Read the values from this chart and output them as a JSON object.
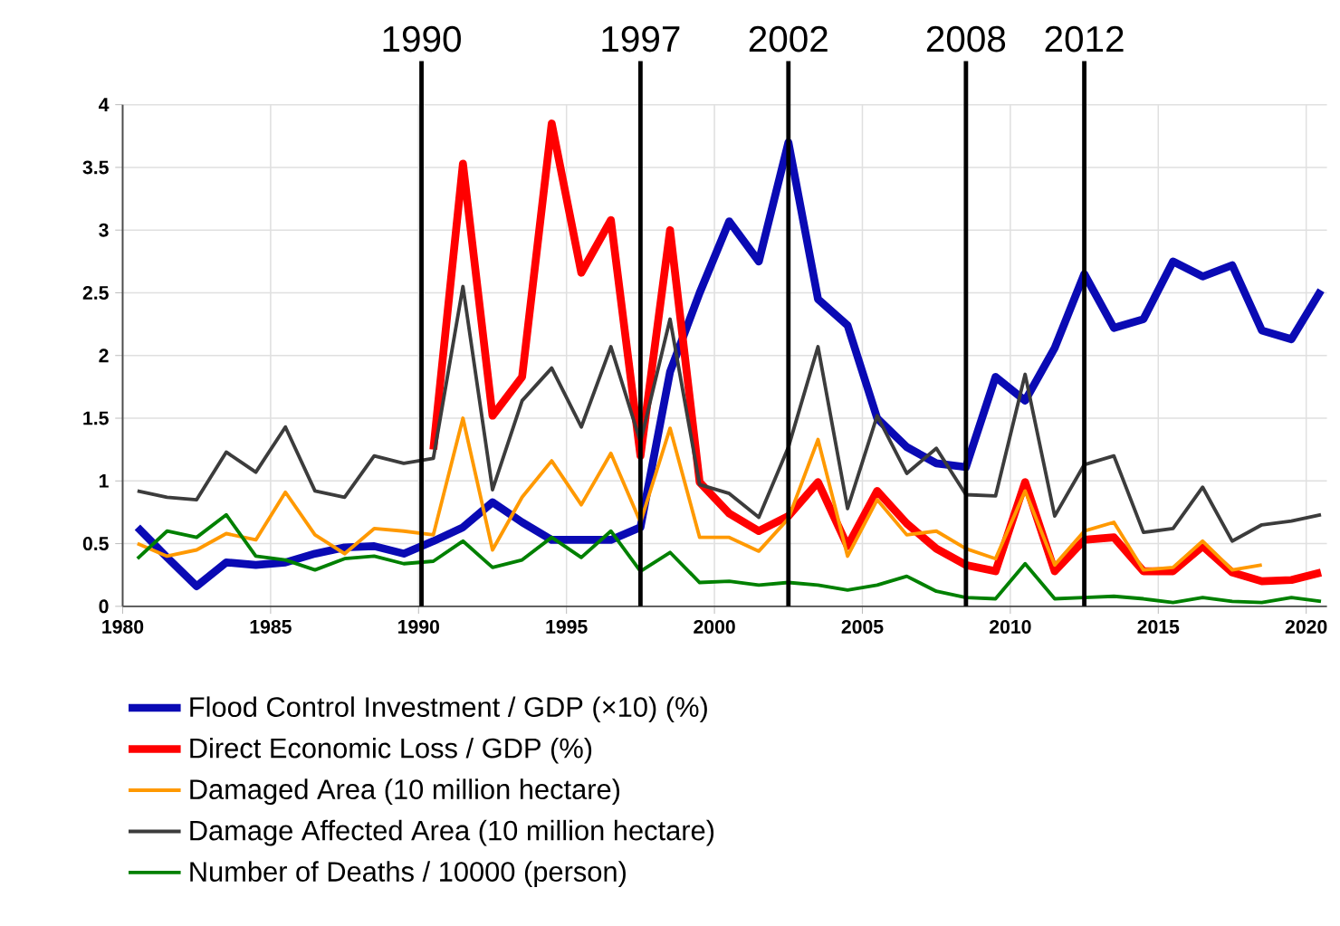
{
  "chart_data": {
    "type": "line",
    "x": [
      1980.5,
      1981.5,
      1982.5,
      1983.5,
      1984.5,
      1985.5,
      1986.5,
      1987.5,
      1988.5,
      1989.5,
      1990.5,
      1991.5,
      1992.5,
      1993.5,
      1994.5,
      1995.5,
      1996.5,
      1997.5,
      1998.5,
      1999.5,
      2000.5,
      2001.5,
      2002.5,
      2003.5,
      2004.5,
      2005.5,
      2006.5,
      2007.5,
      2008.5,
      2009.5,
      2010.5,
      2011.5,
      2012.5,
      2013.5,
      2014.5,
      2015.5,
      2016.5,
      2017.5,
      2018.5,
      2019.5,
      2020.5
    ],
    "series": [
      {
        "name": "Flood Control Investment / GDP  (×10)  (%)",
        "color": "#0a0ab4",
        "values": [
          0.63,
          0.39,
          0.16,
          0.35,
          0.33,
          0.35,
          0.42,
          0.47,
          0.48,
          0.42,
          0.52,
          0.63,
          0.83,
          0.67,
          0.53,
          0.53,
          0.53,
          0.63,
          1.87,
          2.5,
          3.07,
          2.75,
          3.7,
          2.45,
          2.24,
          1.5,
          1.27,
          1.14,
          1.11,
          1.83,
          1.64,
          2.06,
          2.65,
          2.22,
          2.29,
          2.75,
          2.63,
          2.72,
          2.2,
          2.13,
          2.52
        ]
      },
      {
        "name": "Direct Economic Loss / GDP    (%)",
        "color": "#ff0000",
        "values": [
          null,
          null,
          null,
          null,
          null,
          null,
          null,
          null,
          null,
          null,
          1.25,
          3.53,
          1.52,
          1.83,
          3.85,
          2.66,
          3.08,
          1.2,
          3.0,
          0.99,
          0.74,
          0.6,
          0.72,
          0.99,
          0.48,
          0.92,
          0.66,
          0.46,
          0.33,
          0.28,
          0.99,
          0.28,
          0.53,
          0.55,
          0.28,
          0.28,
          0.48,
          0.27,
          0.2,
          0.21,
          0.27
        ]
      },
      {
        "name": "Damaged Area  (10 million hectare)",
        "color": "#ff9900",
        "values": [
          0.5,
          0.4,
          0.45,
          0.58,
          0.53,
          0.91,
          0.57,
          0.42,
          0.62,
          0.6,
          0.57,
          1.5,
          0.45,
          0.87,
          1.16,
          0.81,
          1.22,
          0.67,
          1.42,
          0.55,
          0.55,
          0.44,
          0.7,
          1.33,
          0.4,
          0.85,
          0.57,
          0.6,
          0.46,
          0.38,
          0.92,
          0.33,
          0.6,
          0.67,
          0.29,
          0.31,
          0.52,
          0.29,
          0.33,
          null,
          null
        ]
      },
      {
        "name": "Damage Affected Area  (10 million hectare)",
        "color": "#3c3c3c",
        "values": [
          0.92,
          0.87,
          0.85,
          1.23,
          1.07,
          1.43,
          0.92,
          0.87,
          1.2,
          1.14,
          1.18,
          2.55,
          0.93,
          1.64,
          1.9,
          1.43,
          2.07,
          1.31,
          2.29,
          0.97,
          0.9,
          0.71,
          1.27,
          2.07,
          0.78,
          1.52,
          1.06,
          1.26,
          0.89,
          0.88,
          1.85,
          0.72,
          1.13,
          1.2,
          0.59,
          0.62,
          0.95,
          0.52,
          0.65,
          0.68,
          0.73
        ]
      },
      {
        "name": "Number of Deaths / 10000  (person)",
        "color": "#008000",
        "values": [
          0.38,
          0.6,
          0.55,
          0.73,
          0.4,
          0.37,
          0.29,
          0.38,
          0.4,
          0.34,
          0.36,
          0.52,
          0.31,
          0.37,
          0.55,
          0.39,
          0.6,
          0.28,
          0.43,
          0.19,
          0.2,
          0.17,
          0.19,
          0.17,
          0.13,
          0.17,
          0.24,
          0.12,
          0.07,
          0.06,
          0.34,
          0.06,
          0.07,
          0.08,
          0.06,
          0.03,
          0.07,
          0.04,
          0.03,
          0.07,
          0.04
        ]
      }
    ],
    "xlim": [
      1980,
      2020.7
    ],
    "ylim": [
      0,
      4
    ],
    "xticks": [
      1980,
      1985,
      1990,
      1995,
      2000,
      2005,
      2010,
      2015,
      2020
    ],
    "yticks": [
      0,
      0.5,
      1,
      1.5,
      2,
      2.5,
      3,
      3.5,
      4
    ],
    "grid": true,
    "legend": "bottom",
    "ref_lines": [
      {
        "axis": "x",
        "value": 1990.1,
        "label": "1990",
        "color": "#000000"
      },
      {
        "axis": "x",
        "value": 1997.5,
        "label": "1997",
        "color": "#000000"
      },
      {
        "axis": "x",
        "value": 2002.5,
        "label": "2002",
        "color": "#000000"
      },
      {
        "axis": "x",
        "value": 2008.5,
        "label": "2008",
        "color": "#000000"
      },
      {
        "axis": "x",
        "value": 2012.5,
        "label": "2012",
        "color": "#000000"
      }
    ]
  }
}
